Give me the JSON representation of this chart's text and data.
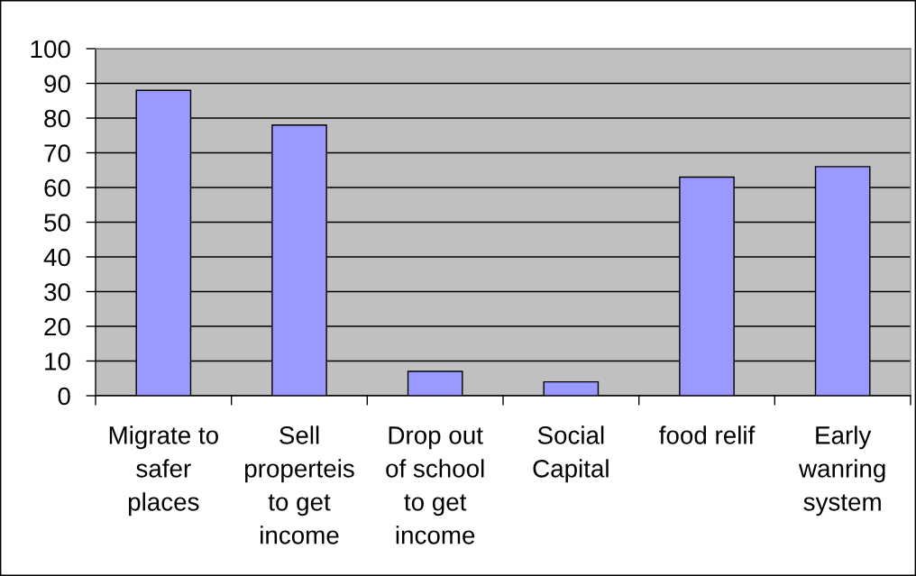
{
  "chart_data": {
    "type": "bar",
    "categories": [
      "Migrate to safer places",
      "Sell properteis to get income",
      "Drop out of school to get income",
      "Social Capital",
      "food relif",
      "Early wanring system"
    ],
    "values": [
      88,
      78,
      7,
      4,
      63,
      66
    ],
    "color": "#9999ff",
    "ylim": [
      0,
      100
    ],
    "yticks": [
      0,
      10,
      20,
      30,
      40,
      50,
      60,
      70,
      80,
      90,
      100
    ],
    "grid": "y"
  }
}
